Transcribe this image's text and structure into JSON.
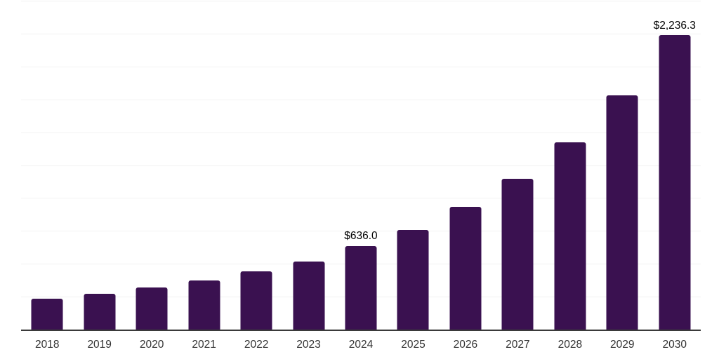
{
  "chart_data": {
    "type": "bar",
    "title": "",
    "xlabel": "",
    "ylabel": "",
    "categories": [
      "2018",
      "2019",
      "2020",
      "2021",
      "2022",
      "2023",
      "2024",
      "2025",
      "2026",
      "2027",
      "2028",
      "2029",
      "2030"
    ],
    "values": [
      234,
      272,
      320,
      373,
      442,
      517,
      636.0,
      758,
      933,
      1146,
      1423,
      1780,
      2236.3
    ],
    "data_labels": {
      "2024": "$636.0",
      "2030": "$2,236.3"
    },
    "ylim": [
      0,
      2500
    ],
    "gridline_step": 250,
    "grid": true,
    "legend": false,
    "bar_color": "#3A1150",
    "gridline_color": "#f2f2f2",
    "axis_color": "#3a3a3a",
    "tick_label_color": "#333333",
    "data_label_color": "#000000",
    "background_color": "#ffffff"
  }
}
